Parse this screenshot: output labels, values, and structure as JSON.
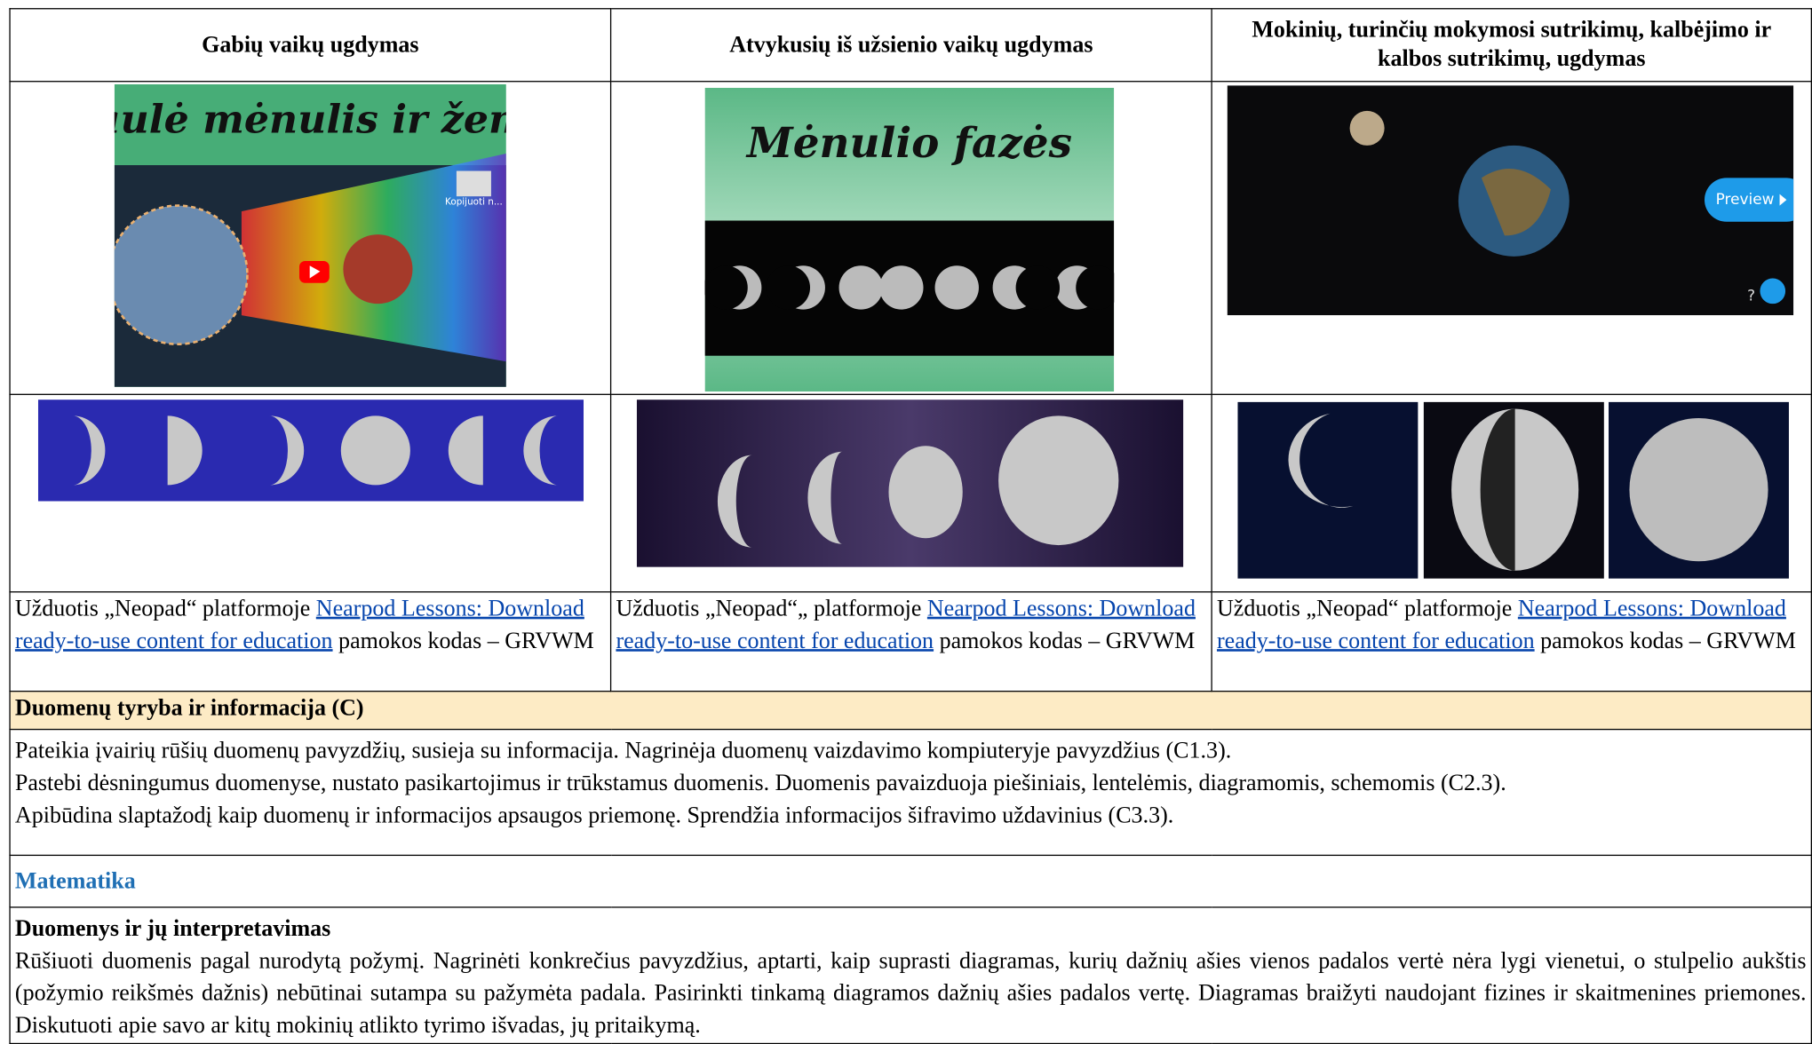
{
  "table": {
    "header": [
      "Gabių vaikų ugdymas",
      "Atvykusių iš užsienio vaikų ugdymas",
      "Mokinių, turinčių mokymosi sutrikimų, kalbėjimo ir kalbos sutrikimų, ugdymas"
    ],
    "images": {
      "title_1": "Saulė mėnulis ir žemė",
      "badge_1": "Kopijuoti n...",
      "title_2": "Mėnulio fazės",
      "button_3": "Preview",
      "help_3": "?"
    },
    "tasks": [
      {
        "prefix": "Užduotis „Neopad“ platformoje ",
        "link": "Nearpod Lessons: Download ready-to-use content for education",
        "suffix": " pamokos kodas – GRVWM"
      },
      {
        "prefix": "Užduotis „Neopad“„ platformoje ",
        "link": "Nearpod Lessons: Download ready-to-use content for education",
        "suffix": " pamokos kodas – GRVWM"
      },
      {
        "prefix": "Užduotis „Neopad“ platformoje ",
        "link": "Nearpod Lessons: Download ready-to-use content for education",
        "suffix": " pamokos kodas – GRVWM"
      }
    ],
    "section_c": {
      "title": "Duomenų tyryba ir informacija (C)",
      "items": [
        "Pateikia įvairių rūšių duomenų pavyzdžių, susieja su informacija. Nagrinėja duomenų vaizdavimo kompiuteryje pavyzdžius (C1.3).",
        "Pastebi dėsningumus duomenyse, nustato pasikartojimus ir trūkstamus duomenis. Duomenis pavaizduoja piešiniais, lentelėmis, diagramomis, schemomis (C2.3).",
        "Apibūdina slaptažodį kaip duomenų ir informacijos apsaugos priemonę. Sprendžia informacijos šifravimo uždavinius (C3.3)."
      ]
    },
    "math": {
      "title": "Matematika",
      "subtitle": "Duomenys ir jų interpretavimas",
      "text": "Rūšiuoti duomenis pagal nurodytą požymį. Nagrinėti konkrečius pavyzdžius, aptarti, kaip suprasti diagramas, kurių dažnių ašies vienos padalos vertė nėra lygi vienetui, o stulpelio aukštis (požymio reikšmės dažnis) nebūtinai sutampa su pažymėta padala. Pasirinkti tinkamą diagramos dažnių ašies padalos vertę. Diagramas braižyti naudojant fizines ir skaitmenines priemones. Diskutuoti apie savo ar kitų mokinių atlikto tyrimo išvadas, jų pritaikymą."
    }
  }
}
